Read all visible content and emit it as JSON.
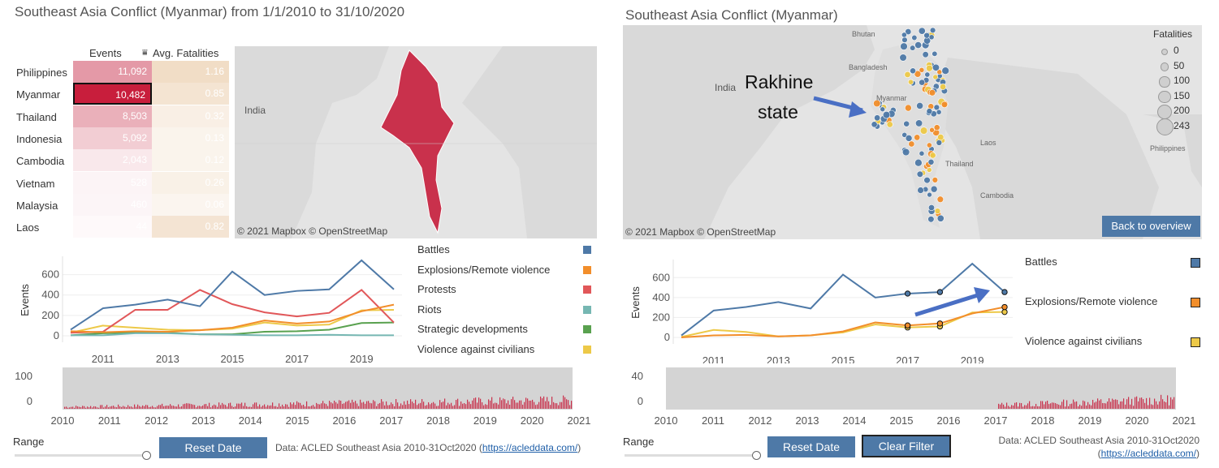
{
  "left": {
    "title": "Southeast Asia Conflict (Myanmar) from 1/1/2010 to 31/10/2020",
    "table": {
      "col_events": "Events",
      "col_fatal": "Avg. Fatalities",
      "sort_icon": "sort-descending-icon",
      "rows": [
        {
          "country": "Philippines",
          "events": "11,092",
          "fatal": "1.16"
        },
        {
          "country": "Myanmar",
          "events": "10,482",
          "fatal": "0.85",
          "selected": true
        },
        {
          "country": "Thailand",
          "events": "8,503",
          "fatal": "0.32"
        },
        {
          "country": "Indonesia",
          "events": "5,092",
          "fatal": "0.13"
        },
        {
          "country": "Cambodia",
          "events": "2,043",
          "fatal": "0.12"
        },
        {
          "country": "Vietnam",
          "events": "528",
          "fatal": "0.26"
        },
        {
          "country": "Malaysia",
          "events": "460",
          "fatal": "0.06"
        },
        {
          "country": "Laos",
          "events": "44",
          "fatal": "0.82"
        }
      ]
    },
    "map": {
      "label_india": "India",
      "copyright": "© 2021 Mapbox © OpenStreetMap",
      "highlight_color": "#c9314c"
    },
    "legend": [
      {
        "name": "Battles",
        "color": "#4e79a7"
      },
      {
        "name": "Explosions/Remote violence",
        "color": "#f28e2b"
      },
      {
        "name": "Protests",
        "color": "#e15759"
      },
      {
        "name": "Riots",
        "color": "#76b7b2"
      },
      {
        "name": "Strategic developments",
        "color": "#59a14f"
      },
      {
        "name": "Violence against civilians",
        "color": "#edc948"
      }
    ],
    "range_label": "Range",
    "reset_label": "Reset Date",
    "source_text": "Data: ACLED Southeast Asia 2010-31Oct2020 (",
    "source_link": "https://acleddata.com/",
    "source_close": ")"
  },
  "right": {
    "title": "Southeast Asia Conflict (Myanmar)",
    "map": {
      "label_india": "India",
      "label_bangladesh": "Bangladesh",
      "label_bhutan": "Bhutan",
      "label_laos": "Laos",
      "label_thailand": "Thailand",
      "label_cambodia": "Cambodia",
      "label_philippines": "Philippines",
      "label_myanmar": "Myanmar",
      "annotation_line1": "Rakhine",
      "annotation_line2": "state",
      "copyright": "© 2021 Mapbox © OpenStreetMap",
      "back_label": "Back to overview",
      "size_legend_title": "Fatalities",
      "size_legend": [
        "0",
        "50",
        "100",
        "150",
        "200",
        "243"
      ]
    },
    "legend": [
      {
        "name": "Battles",
        "color": "#4e79a7"
      },
      {
        "name": "Explosions/Remote violence",
        "color": "#f28e2b"
      },
      {
        "name": "Violence against civilians",
        "color": "#edc948"
      }
    ],
    "range_label": "Range",
    "reset_label": "Reset Date",
    "clear_label": "Clear Filter",
    "source_line1": "Data: ACLED Southeast Asia 2010-31Oct2020",
    "source_link": "https://acleddata.com/"
  },
  "chart_data": [
    {
      "type": "line",
      "ylabel": "Events",
      "x": [
        2010,
        2011,
        2012,
        2013,
        2014,
        2015,
        2016,
        2017,
        2018,
        2019,
        2020
      ],
      "xticks": [
        "2011",
        "2013",
        "2015",
        "2017",
        "2019"
      ],
      "ylim": [
        0,
        700
      ],
      "yticks": [
        0,
        200,
        400,
        600
      ],
      "series": [
        {
          "name": "Battles",
          "color": "#4e79a7",
          "values": [
            60,
            270,
            305,
            355,
            290,
            630,
            400,
            440,
            455,
            740,
            455
          ]
        },
        {
          "name": "Explosions/Remote violence",
          "color": "#f28e2b",
          "values": [
            45,
            35,
            45,
            40,
            55,
            80,
            150,
            120,
            140,
            240,
            305
          ]
        },
        {
          "name": "Protests",
          "color": "#e15759",
          "values": [
            30,
            40,
            255,
            255,
            450,
            310,
            230,
            190,
            225,
            450,
            130
          ]
        },
        {
          "name": "Riots",
          "color": "#76b7b2",
          "values": [
            5,
            5,
            25,
            25,
            15,
            10,
            5,
            5,
            10,
            5,
            5
          ]
        },
        {
          "name": "Strategic developments",
          "color": "#59a14f",
          "values": [
            5,
            25,
            30,
            30,
            15,
            15,
            40,
            45,
            60,
            125,
            130
          ]
        },
        {
          "name": "Violence against civilians",
          "color": "#edc948",
          "values": [
            30,
            100,
            80,
            60,
            55,
            70,
            130,
            100,
            110,
            250,
            255
          ]
        }
      ]
    },
    {
      "type": "bar",
      "yticks": [
        0,
        100
      ],
      "xticks": [
        "2010",
        "2011",
        "2012",
        "2013",
        "2014",
        "2015",
        "2016",
        "2017",
        "2018",
        "2019",
        "2020",
        "2021"
      ],
      "color": "#c9314c"
    },
    {
      "type": "line",
      "ylabel": "Events",
      "x": [
        2010,
        2011,
        2012,
        2013,
        2014,
        2015,
        2016,
        2017,
        2018,
        2019,
        2020
      ],
      "xticks": [
        "2011",
        "2013",
        "2015",
        "2017",
        "2019"
      ],
      "ylim": [
        0,
        700
      ],
      "yticks": [
        0,
        200,
        400,
        600
      ],
      "series": [
        {
          "name": "Battles",
          "color": "#4e79a7",
          "values": [
            20,
            270,
            305,
            355,
            290,
            630,
            400,
            440,
            455,
            740,
            455
          ]
        },
        {
          "name": "Explosions/Remote violence",
          "color": "#f28e2b",
          "values": [
            0,
            20,
            25,
            10,
            20,
            60,
            150,
            120,
            140,
            240,
            305
          ]
        },
        {
          "name": "Violence against civilians",
          "color": "#edc948",
          "values": [
            5,
            75,
            55,
            10,
            20,
            50,
            130,
            100,
            110,
            250,
            255
          ]
        }
      ]
    },
    {
      "type": "bar",
      "yticks": [
        0,
        40
      ],
      "xticks": [
        "2010",
        "2011",
        "2012",
        "2013",
        "2014",
        "2015",
        "2016",
        "2017",
        "2018",
        "2019",
        "2020",
        "2021"
      ],
      "color": "#c9314c"
    }
  ]
}
